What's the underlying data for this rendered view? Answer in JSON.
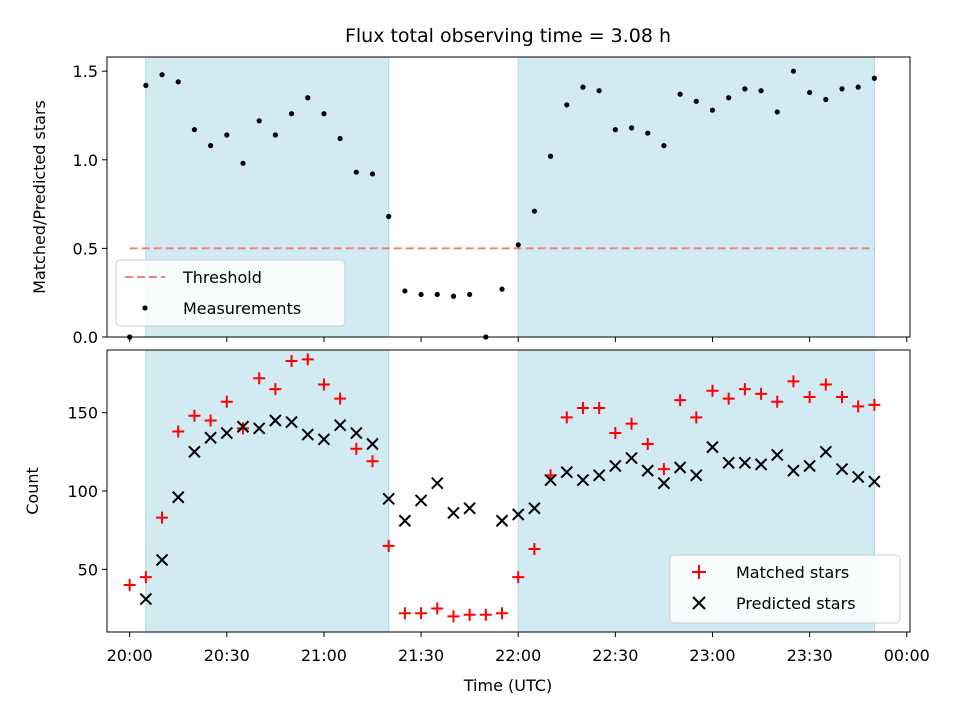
{
  "chart_data": [
    {
      "type": "scatter",
      "title": "Flux total observing time = 3.08 h",
      "xlabel": "",
      "ylabel": "Matched/Predicted stars",
      "xlim": [
        "19:53",
        "00:01"
      ],
      "ylim": [
        0,
        1.58
      ],
      "yticks": [
        0.0,
        0.5,
        1.0,
        1.5
      ],
      "ytick_labels": [
        "0.0",
        "0.5",
        "1.0",
        "1.5"
      ],
      "grid": false,
      "legend_position": "lower-left",
      "shaded_intervals": [
        [
          "20:05",
          "21:20"
        ],
        [
          "22:00",
          "23:50"
        ]
      ],
      "shade_color": "#add8e6",
      "series": [
        {
          "name": "Threshold",
          "kind": "dashed-line",
          "color": "#f08080",
          "x": [
            "20:00",
            "23:50"
          ],
          "y": [
            0.5,
            0.5
          ]
        },
        {
          "name": "Measurements",
          "kind": "points",
          "color": "#000000",
          "x": [
            "20:00",
            "20:05",
            "20:10",
            "20:15",
            "20:20",
            "20:25",
            "20:30",
            "20:35",
            "20:40",
            "20:45",
            "20:50",
            "20:55",
            "21:00",
            "21:05",
            "21:10",
            "21:15",
            "21:20",
            "21:25",
            "21:30",
            "21:35",
            "21:40",
            "21:45",
            "21:50",
            "21:55",
            "22:00",
            "22:05",
            "22:10",
            "22:15",
            "22:20",
            "22:25",
            "22:30",
            "22:35",
            "22:40",
            "22:45",
            "22:50",
            "22:55",
            "23:00",
            "23:05",
            "23:10",
            "23:15",
            "23:20",
            "23:25",
            "23:30",
            "23:35",
            "23:40",
            "23:45",
            "23:50"
          ],
          "y": [
            0.0,
            1.42,
            1.48,
            1.44,
            1.17,
            1.08,
            1.14,
            0.98,
            1.22,
            1.14,
            1.26,
            1.35,
            1.26,
            1.12,
            0.93,
            0.92,
            0.68,
            0.26,
            0.24,
            0.24,
            0.23,
            0.24,
            0.0,
            0.27,
            0.52,
            0.71,
            1.02,
            1.31,
            1.41,
            1.39,
            1.17,
            1.18,
            1.15,
            1.08,
            1.37,
            1.33,
            1.28,
            1.35,
            1.4,
            1.39,
            1.27,
            1.5,
            1.38,
            1.34,
            1.4,
            1.41,
            1.46
          ]
        }
      ]
    },
    {
      "type": "scatter",
      "title": "",
      "xlabel": "Time (UTC)",
      "ylabel": "Count",
      "xlim": [
        "19:53",
        "00:01"
      ],
      "ylim": [
        10,
        190
      ],
      "yticks": [
        50,
        100,
        150
      ],
      "ytick_labels": [
        "50",
        "100",
        "150"
      ],
      "xticks": [
        "20:00",
        "20:30",
        "21:00",
        "21:30",
        "22:00",
        "22:30",
        "23:00",
        "23:30",
        "00:00"
      ],
      "grid": false,
      "legend_position": "lower-right",
      "shaded_intervals": [
        [
          "20:05",
          "21:20"
        ],
        [
          "22:00",
          "23:50"
        ]
      ],
      "shade_color": "#add8e6",
      "series": [
        {
          "name": "Matched stars",
          "marker": "plus",
          "color": "#ff0000",
          "x": [
            "20:00",
            "20:05",
            "20:10",
            "20:15",
            "20:20",
            "20:25",
            "20:30",
            "20:35",
            "20:40",
            "20:45",
            "20:50",
            "20:55",
            "21:00",
            "21:05",
            "21:10",
            "21:15",
            "21:20",
            "21:25",
            "21:30",
            "21:35",
            "21:40",
            "21:45",
            "21:50",
            "21:55",
            "22:00",
            "22:05",
            "22:10",
            "22:15",
            "22:20",
            "22:25",
            "22:30",
            "22:35",
            "22:40",
            "22:45",
            "22:50",
            "22:55",
            "23:00",
            "23:05",
            "23:10",
            "23:15",
            "23:20",
            "23:25",
            "23:30",
            "23:35",
            "23:40",
            "23:45",
            "23:50"
          ],
          "y": [
            40,
            45,
            83,
            138,
            148,
            145,
            157,
            140,
            172,
            165,
            183,
            184,
            168,
            159,
            127,
            119,
            65,
            22,
            22,
            25,
            20,
            21,
            21,
            22,
            45,
            63,
            110,
            147,
            153,
            153,
            137,
            143,
            130,
            114,
            158,
            147,
            164,
            159,
            165,
            162,
            157,
            170,
            160,
            168,
            160,
            154,
            155
          ]
        },
        {
          "name": "Predicted stars",
          "marker": "x",
          "color": "#000000",
          "x": [
            "20:05",
            "20:10",
            "20:15",
            "20:20",
            "20:25",
            "20:30",
            "20:35",
            "20:40",
            "20:45",
            "20:50",
            "20:55",
            "21:00",
            "21:05",
            "21:10",
            "21:15",
            "21:20",
            "21:25",
            "21:30",
            "21:35",
            "21:40",
            "21:45",
            "21:55",
            "22:00",
            "22:05",
            "22:10",
            "22:15",
            "22:20",
            "22:25",
            "22:30",
            "22:35",
            "22:40",
            "22:45",
            "22:50",
            "22:55",
            "23:00",
            "23:05",
            "23:10",
            "23:15",
            "23:20",
            "23:25",
            "23:30",
            "23:35",
            "23:40",
            "23:45",
            "23:50"
          ],
          "y": [
            31,
            56,
            96,
            125,
            134,
            137,
            141,
            140,
            145,
            144,
            136,
            133,
            142,
            137,
            130,
            95,
            81,
            94,
            105,
            86,
            89,
            81,
            85,
            89,
            107,
            112,
            107,
            110,
            116,
            121,
            113,
            105,
            115,
            110,
            128,
            118,
            118,
            117,
            123,
            113,
            116,
            125,
            114,
            109,
            106
          ]
        }
      ]
    }
  ]
}
